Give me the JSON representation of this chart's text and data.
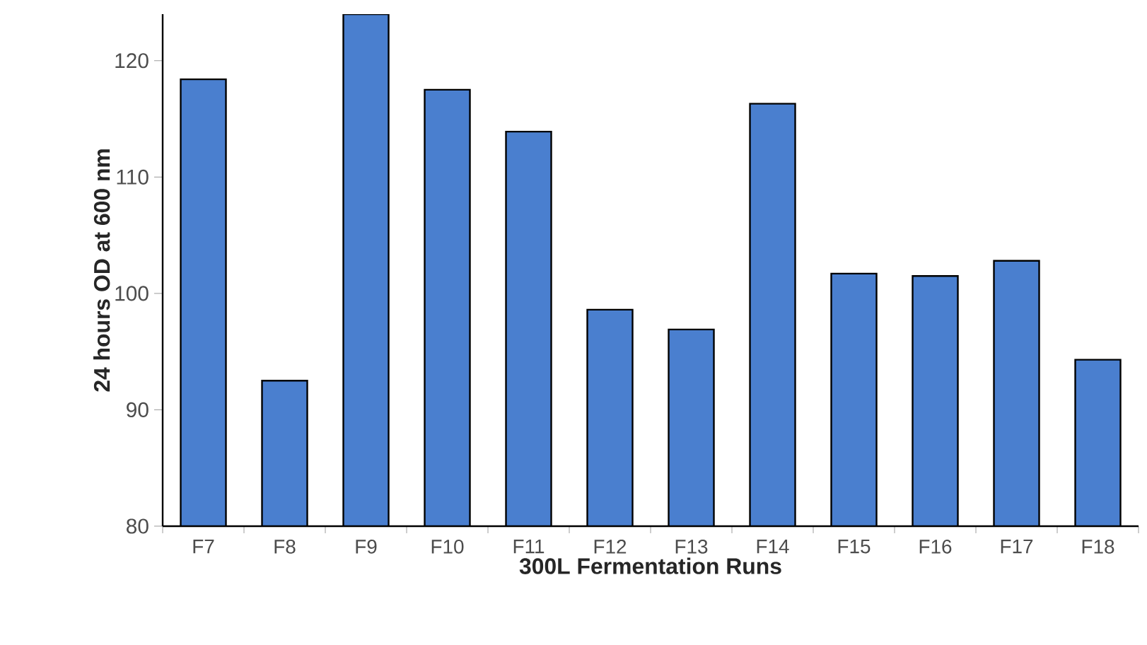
{
  "chart_data": {
    "type": "bar",
    "xlabel": "300L Fermentation Runs",
    "ylabel": "24 hours OD at 600 nm",
    "categories": [
      "F7",
      "F8",
      "F9",
      "F10",
      "F11",
      "F12",
      "F13",
      "F14",
      "F15",
      "F16",
      "F17",
      "F18"
    ],
    "values": [
      118.4,
      92.5,
      124,
      117.5,
      113.9,
      98.6,
      96.9,
      116.3,
      101.7,
      101.5,
      102.8,
      94.3
    ],
    "color": "#4a7fcf",
    "ylim": [
      80,
      124
    ],
    "yticks": [
      80,
      90,
      100,
      110,
      120
    ],
    "grid": false
  }
}
